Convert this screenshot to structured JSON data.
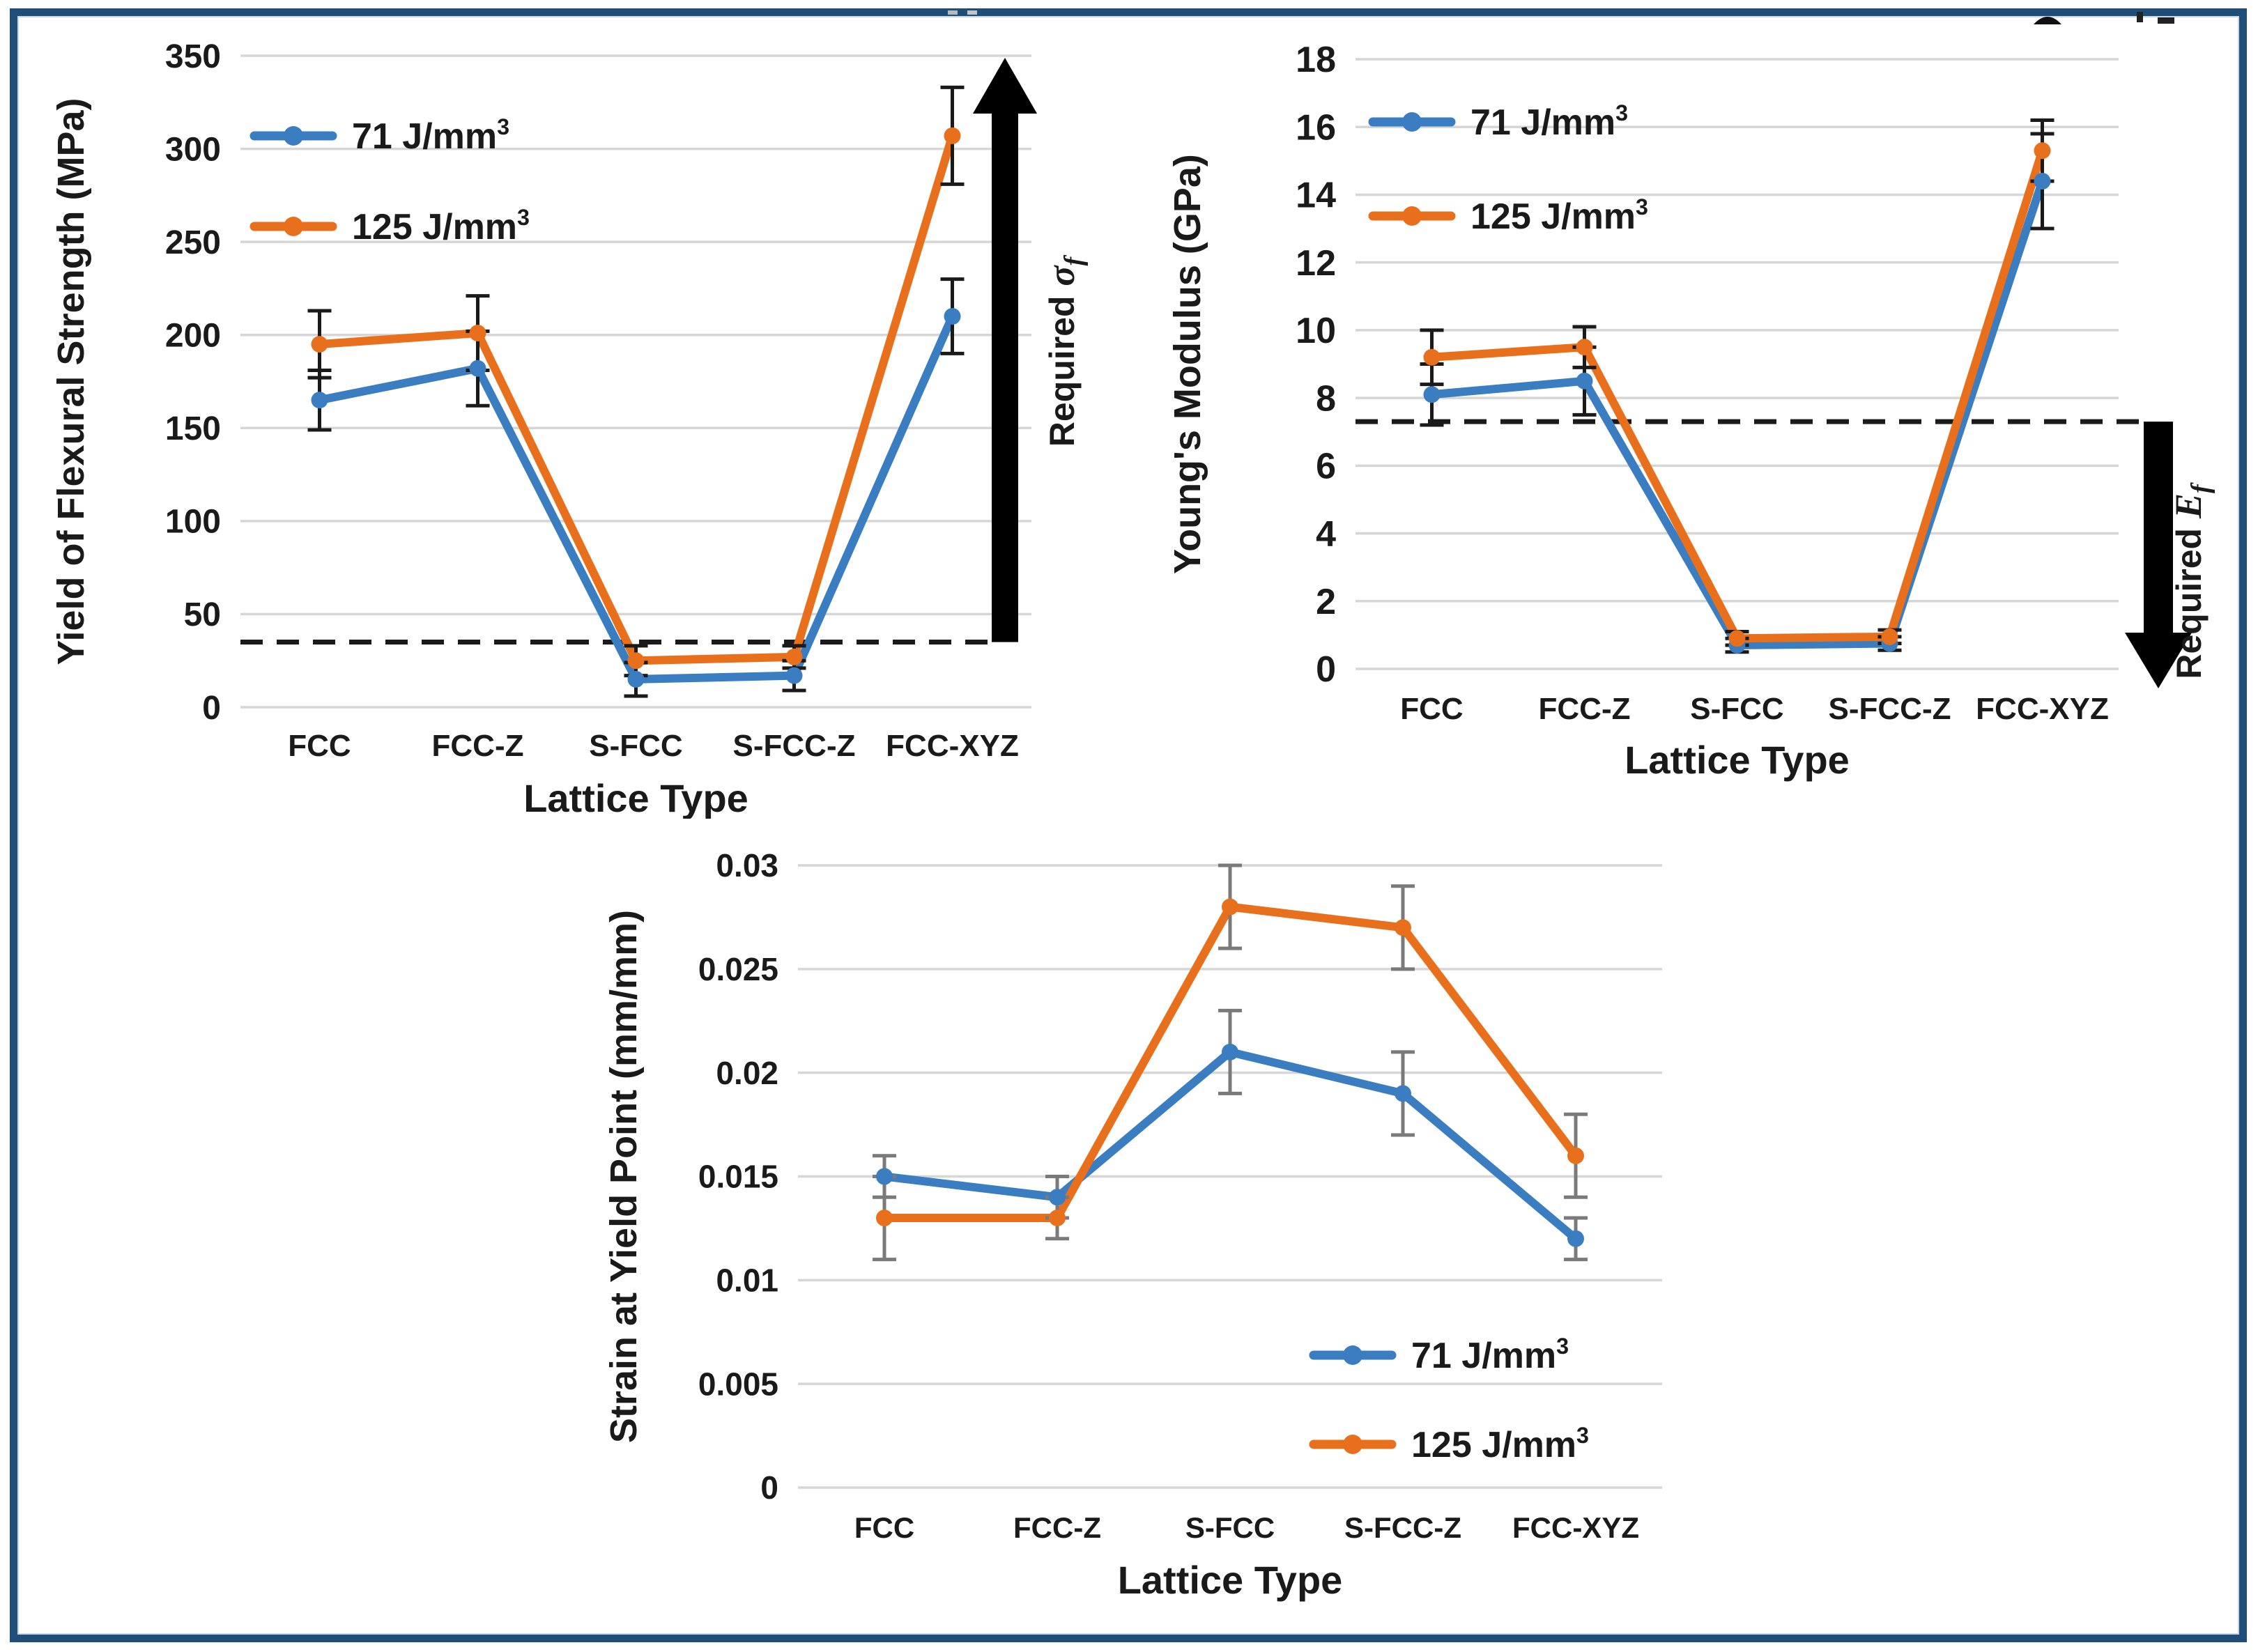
{
  "figure": {
    "background": "#ffffff",
    "frame_color": "#1F4E79",
    "gridline_color": "#D6D6D6",
    "text_color": "#1a1a1a",
    "dashed_line_color": "#1a1a1a",
    "arrow_color": "#000000"
  },
  "chart_data": [
    {
      "type": "line",
      "title": "",
      "xlabel": "Lattice Type",
      "ylabel": "Yield of Flexural Strength (MPa)",
      "categories": [
        "FCC",
        "FCC-Z",
        "S-FCC",
        "S-FCC-Z",
        "FCC-XYZ"
      ],
      "ylim": [
        0,
        350
      ],
      "ytick_step": 50,
      "grid": true,
      "legend_position": "top-left",
      "error_bar_color": "#1a1a1a",
      "dashed_line_y": 35,
      "required_arrow": {
        "direction": "up",
        "text": "Required",
        "symbol": "σ",
        "subscript": "f"
      },
      "series": [
        {
          "name": "71 J/mm³",
          "label_base": "71 J/mm",
          "label_sup": "3",
          "color": "#3A7DC0",
          "values": [
            165,
            182,
            15,
            17,
            210
          ],
          "errors": [
            16,
            20,
            9,
            8,
            20
          ]
        },
        {
          "name": "125 J/mm³",
          "label_base": "125 J/mm",
          "label_sup": "3",
          "color": "#E8701D",
          "values": [
            195,
            201,
            25,
            27,
            307
          ],
          "errors": [
            18,
            20,
            8,
            6,
            26
          ]
        }
      ]
    },
    {
      "type": "line",
      "title": "",
      "xlabel": "Lattice Type",
      "ylabel": "Young's Modulus (GPa)",
      "categories": [
        "FCC",
        "FCC-Z",
        "S-FCC",
        "S-FCC-Z",
        "FCC-XYZ"
      ],
      "ylim": [
        0,
        18
      ],
      "ytick_step": 2,
      "grid": true,
      "legend_position": "top-left",
      "error_bar_color": "#1a1a1a",
      "dashed_line_y": 7.3,
      "required_arrow": {
        "direction": "down",
        "text": "Required",
        "symbol": "E",
        "subscript": "f"
      },
      "series": [
        {
          "name": "71 J/mm³",
          "label_base": "71 J/mm",
          "label_sup": "3",
          "color": "#3A7DC0",
          "values": [
            8.1,
            8.5,
            0.7,
            0.75,
            14.4
          ],
          "errors": [
            0.9,
            1.0,
            0.2,
            0.2,
            1.4
          ]
        },
        {
          "name": "125 J/mm³",
          "label_base": "125 J/mm",
          "label_sup": "3",
          "color": "#E8701D",
          "values": [
            9.2,
            9.5,
            0.9,
            0.95,
            15.3
          ],
          "errors": [
            0.8,
            0.6,
            0.2,
            0.2,
            0.9
          ]
        }
      ]
    },
    {
      "type": "line",
      "title": "",
      "xlabel": "Lattice Type",
      "ylabel": "Strain at Yield Point (mm/mm)",
      "categories": [
        "FCC",
        "FCC-Z",
        "S-FCC",
        "S-FCC-Z",
        "FCC-XYZ"
      ],
      "ylim": [
        0,
        0.03
      ],
      "ytick_step": 0.005,
      "grid": true,
      "legend_position": "bottom-right",
      "error_bar_color": "#7a7a7a",
      "dashed_line_y": null,
      "required_arrow": null,
      "series": [
        {
          "name": "71 J/mm³",
          "label_base": "71 J/mm",
          "label_sup": "3",
          "color": "#3A7DC0",
          "values": [
            0.015,
            0.014,
            0.021,
            0.019,
            0.012
          ],
          "errors": [
            0.001,
            0.001,
            0.002,
            0.002,
            0.001
          ]
        },
        {
          "name": "125 J/mm³",
          "label_base": "125 J/mm",
          "label_sup": "3",
          "color": "#E8701D",
          "values": [
            0.013,
            0.013,
            0.028,
            0.027,
            0.016
          ],
          "errors": [
            0.002,
            0.001,
            0.002,
            0.002,
            0.002
          ]
        }
      ]
    }
  ]
}
